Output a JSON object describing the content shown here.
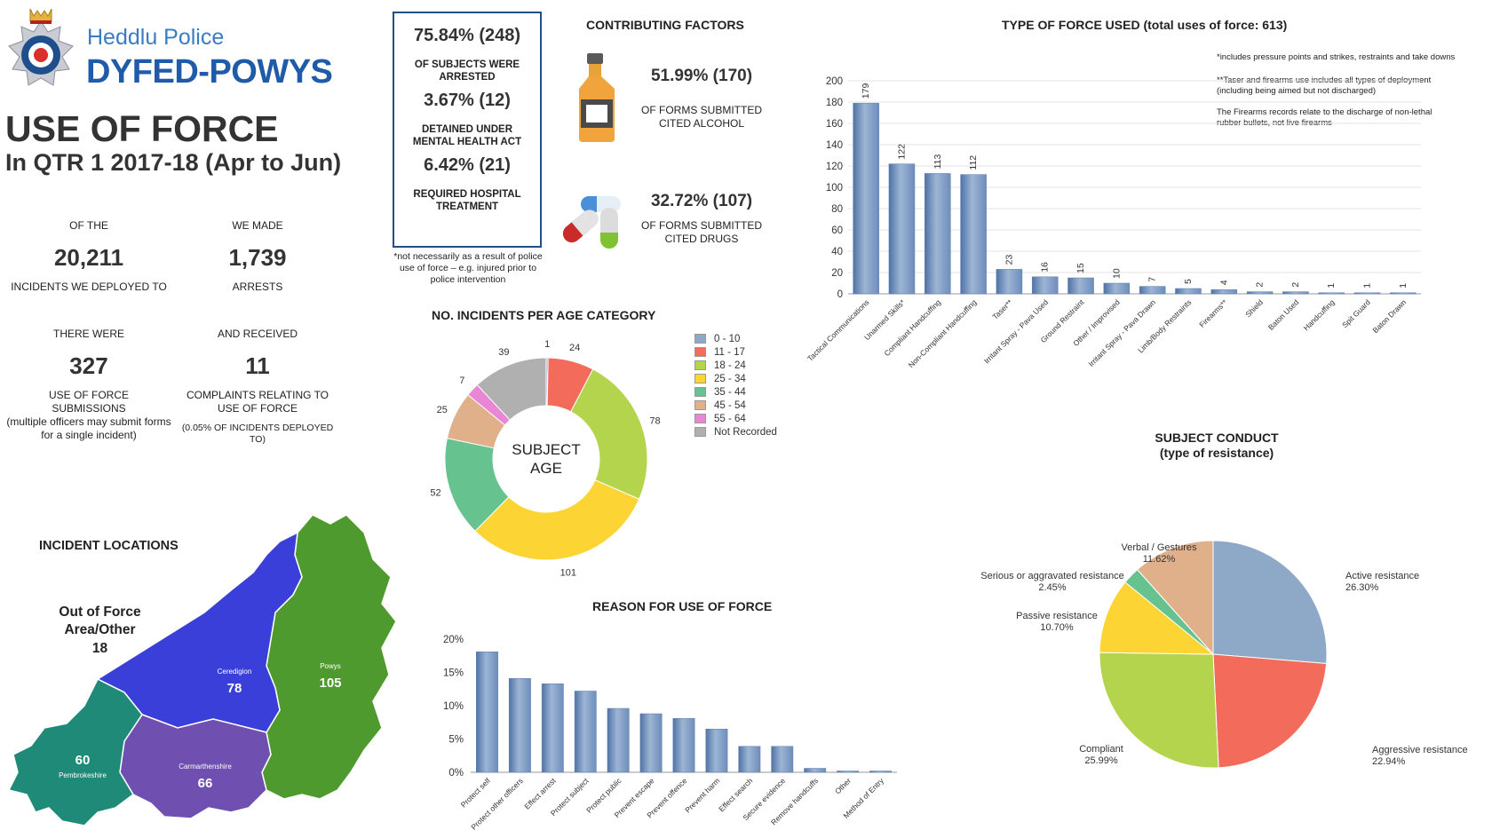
{
  "header": {
    "logo_line1": "Heddlu Police",
    "logo_line2": "DYFED-POWYS",
    "title": "USE OF FORCE",
    "subtitle": "In QTR 1 2017-18 (Apr to Jun)"
  },
  "stats": {
    "incidents": {
      "pre": "OF THE",
      "value": "20,211",
      "post": "INCIDENTS WE DEPLOYED TO"
    },
    "arrests": {
      "pre": "WE MADE",
      "value": "1,739",
      "post": "ARRESTS"
    },
    "submissions": {
      "pre": "THERE WERE",
      "value": "327",
      "post": "USE OF FORCE SUBMISSIONS",
      "note": "(multiple officers may submit forms for a single incident)"
    },
    "complaints": {
      "pre": "AND RECEIVED",
      "value": "11",
      "post": "COMPLAINTS RELATING TO USE OF FORCE",
      "note": "(0.05% OF INCIDENTS DEPLOYED TO)"
    }
  },
  "outcomes": {
    "arrested_pct": "75.84% (248)",
    "arrested_label": "OF SUBJECTS WERE ARRESTED",
    "mha_pct": "3.67% (12)",
    "mha_label": "DETAINED UNDER MENTAL HEALTH ACT",
    "hospital_pct": "6.42% (21)",
    "hospital_label": "REQUIRED HOSPITAL TREATMENT",
    "footnote": "*not necessarily as a result of police use of force – e.g. injured prior to police intervention"
  },
  "factors": {
    "title": "CONTRIBUTING FACTORS",
    "alcohol_pct": "51.99% (170)",
    "alcohol_label": "OF FORMS SUBMITTED CITED ALCOHOL",
    "drugs_pct": "32.72% (107)",
    "drugs_label": "OF FORMS SUBMITTED CITED DRUGS"
  },
  "locations": {
    "title": "INCIDENT LOCATIONS",
    "out_label": "Out of Force Area/Other",
    "out_value": "18",
    "regions": [
      {
        "name": "Ceredigion",
        "value": "78",
        "color": "#3a3fd9"
      },
      {
        "name": "Powys",
        "value": "105",
        "color": "#4f9a2e"
      },
      {
        "name": "Pembrokeshire",
        "value": "60",
        "color": "#1f8a78"
      },
      {
        "name": "Carmarthenshire",
        "value": "66",
        "color": "#6f4fb0"
      }
    ]
  },
  "chart_data": [
    {
      "id": "type_of_force",
      "type": "bar",
      "title": "TYPE OF FORCE USED (total uses of force: 613)",
      "categories": [
        "Tactical Communications",
        "Unarmed Skills*",
        "Compliant Handcuffing",
        "Non-Compliant Handcuffing",
        "Taser**",
        "Irritant Spray - Pava Used",
        "Ground Restraint",
        "Other / Improvised",
        "Irritant Spray - Pava Drawn",
        "Limb/Body Restraints",
        "Firearms**",
        "Shield",
        "Baton Used",
        "Handcuffing",
        "Spit Guard",
        "Baton Drawn"
      ],
      "values": [
        179,
        122,
        113,
        112,
        23,
        16,
        15,
        10,
        7,
        5,
        4,
        2,
        2,
        1,
        1,
        1
      ],
      "ylim": [
        0,
        200
      ],
      "yticks": [
        0,
        20,
        40,
        60,
        80,
        100,
        120,
        140,
        160,
        180,
        200
      ],
      "notes": [
        "*includes pressure points and strikes, restraints and take downs",
        "**Taser and firearms use includes all types of deployment (including being aimed but not discharged)",
        "The Firearms records relate to the discharge of  non-lethal rubber bullets, not live firearms"
      ]
    },
    {
      "id": "age",
      "type": "pie",
      "title": "NO. INCIDENTS PER AGE CATEGORY",
      "center_label": [
        "SUBJECT",
        "AGE"
      ],
      "labels": [
        "0 - 10",
        "11 - 17",
        "18 - 24",
        "25 - 34",
        "35 - 44",
        "45 - 54",
        "55 - 64",
        "Not Recorded"
      ],
      "values": [
        1,
        24,
        78,
        101,
        52,
        25,
        7,
        39
      ],
      "colors": [
        "#8ea9c8",
        "#f26b5b",
        "#b5d44d",
        "#fcd535",
        "#66c28e",
        "#e0b08a",
        "#e987d6",
        "#b0b0b0"
      ],
      "legend_position": "right"
    },
    {
      "id": "reason",
      "type": "bar",
      "title": "REASON FOR USE OF FORCE",
      "categories": [
        "Protect self",
        "Protect other officers",
        "Effect arrest",
        "Protect subject",
        "Protect public",
        "Prevent escape",
        "Prevent offence",
        "Prevent harm",
        "Effect search",
        "Secure evidence",
        "Remove handcuffs",
        "Other",
        "Method of Entry"
      ],
      "values": [
        18.1,
        14.1,
        13.3,
        12.2,
        9.6,
        8.8,
        8.1,
        6.5,
        3.9,
        3.9,
        0.6,
        0.2,
        0.2
      ],
      "unit": "%",
      "ylim": [
        0,
        20
      ],
      "yticks": [
        "0%",
        "5%",
        "10%",
        "15%",
        "20%"
      ]
    },
    {
      "id": "conduct",
      "type": "pie",
      "title": [
        "SUBJECT CONDUCT",
        "(type of resistance)"
      ],
      "labels": [
        "Active resistance",
        "Aggressive resistance",
        "Compliant",
        "Passive resistance",
        "Serious or aggravated resistance",
        "Verbal / Gestures"
      ],
      "values": [
        26.3,
        22.94,
        25.99,
        10.7,
        2.45,
        11.62
      ],
      "display": [
        "26.30%",
        "22.94%",
        "25.99%",
        "10.70%",
        "2.45%",
        "11.62%"
      ],
      "colors": [
        "#8ea9c8",
        "#f26b5b",
        "#b5d44d",
        "#fcd535",
        "#66c28e",
        "#e0b08a"
      ]
    }
  ]
}
